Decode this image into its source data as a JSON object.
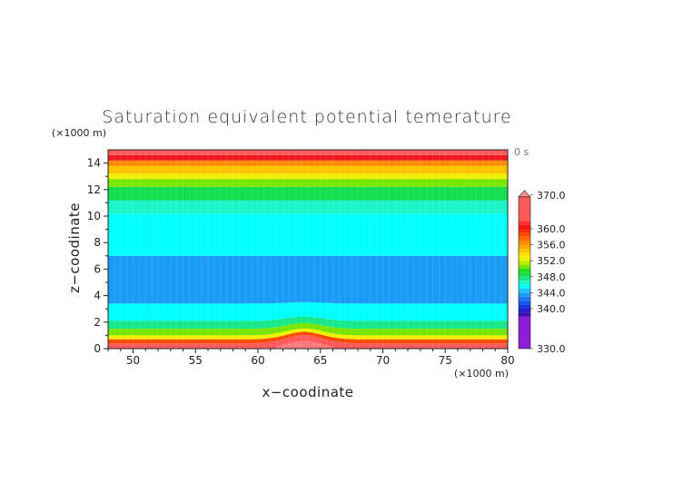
{
  "chart_data": {
    "type": "heatmap",
    "title": "Saturation equivalent potential temerature",
    "xlabel": "x−coodinate",
    "ylabel": "z−coodinate",
    "x_unit": "(×1000 m)",
    "y_unit": "(×1000 m)",
    "time_label": "0 s",
    "xlim": [
      48,
      80
    ],
    "ylim": [
      0,
      15
    ],
    "x_ticks": [
      50,
      55,
      60,
      65,
      70,
      75,
      80
    ],
    "y_ticks": [
      0,
      2,
      4,
      6,
      8,
      10,
      12,
      14
    ],
    "hill": {
      "center_x": 63.7,
      "half_width_x": 3.0,
      "height_z": 0.6
    },
    "layers": [
      {
        "z0": 0.0,
        "z1": 0.4,
        "value": 364
      },
      {
        "z0": 0.4,
        "z1": 0.7,
        "value": 358
      },
      {
        "z0": 0.7,
        "z1": 1.0,
        "value": 352
      },
      {
        "z0": 1.0,
        "z1": 1.5,
        "value": 350
      },
      {
        "z0": 1.5,
        "z1": 2.1,
        "value": 347
      },
      {
        "z0": 2.1,
        "z1": 3.4,
        "value": 345
      },
      {
        "z0": 3.4,
        "z1": 7.0,
        "value": 343
      },
      {
        "z0": 7.0,
        "z1": 10.2,
        "value": 345
      },
      {
        "z0": 10.2,
        "z1": 11.2,
        "value": 346
      },
      {
        "z0": 11.2,
        "z1": 12.2,
        "value": 348
      },
      {
        "z0": 12.2,
        "z1": 12.8,
        "value": 350
      },
      {
        "z0": 12.8,
        "z1": 13.2,
        "value": 352
      },
      {
        "z0": 13.2,
        "z1": 13.8,
        "value": 354
      },
      {
        "z0": 13.8,
        "z1": 14.2,
        "value": 356
      },
      {
        "z0": 14.2,
        "z1": 14.6,
        "value": 360
      },
      {
        "z0": 14.6,
        "z1": 15.0,
        "value": 364
      }
    ],
    "colorbar": {
      "min": 330,
      "max": 370,
      "tick_labels": [
        "370.0",
        "360.0",
        "356.0",
        "352.0",
        "348.0",
        "344.0",
        "340.0",
        "330.0"
      ],
      "levels": [
        330,
        338,
        339,
        340,
        341,
        342,
        343,
        344,
        345,
        346,
        347,
        348,
        349,
        350,
        351,
        352,
        353,
        354,
        355,
        356,
        357,
        358,
        359,
        360,
        361,
        362,
        368,
        370
      ],
      "colors": [
        "#8e1dd8",
        "#3b0cb0",
        "#2a1ccb",
        "#1b34dc",
        "#1656ef",
        "#1a78f5",
        "#1a9cf6",
        "#22bff6",
        "#00ffff",
        "#1cf3c7",
        "#18e88c",
        "#14de4e",
        "#21e01e",
        "#78e600",
        "#b8ee00",
        "#f0f000",
        "#ffe000",
        "#ffc400",
        "#ffa800",
        "#ff8a00",
        "#ff6a00",
        "#ff4800",
        "#ff2a10",
        "#f01818",
        "#ff3030",
        "#ff5a5a",
        "#ff9090"
      ]
    }
  }
}
